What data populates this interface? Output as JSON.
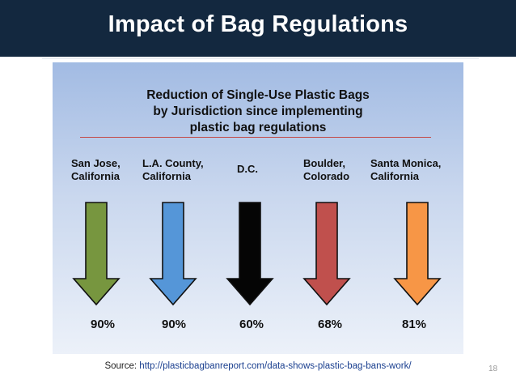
{
  "slide": {
    "title": "Impact of Bag Regulations",
    "page_number": "18"
  },
  "chart": {
    "heading_lines": [
      "Reduction of Single-Use Plastic Bags",
      "by Jurisdiction since implementing",
      "plastic bag regulations"
    ],
    "items": [
      {
        "label_lines": [
          "San Jose,",
          "California"
        ],
        "value": "90%",
        "color": "#77963f"
      },
      {
        "label_lines": [
          "L.A. County,",
          "California"
        ],
        "value": "90%",
        "color": "#5596d8"
      },
      {
        "label_lines": [
          "D.C."
        ],
        "value": "60%",
        "color": "#050505"
      },
      {
        "label_lines": [
          "Boulder,",
          "Colorado"
        ],
        "value": "68%",
        "color": "#c0504d"
      },
      {
        "label_lines": [
          "Santa Monica,",
          "California"
        ],
        "value": "81%",
        "color": "#f79646"
      }
    ]
  },
  "source": {
    "prefix": "Source: ",
    "url": "http://plasticbagbanreport.com/data-shows-plastic-bag-bans-work/"
  }
}
